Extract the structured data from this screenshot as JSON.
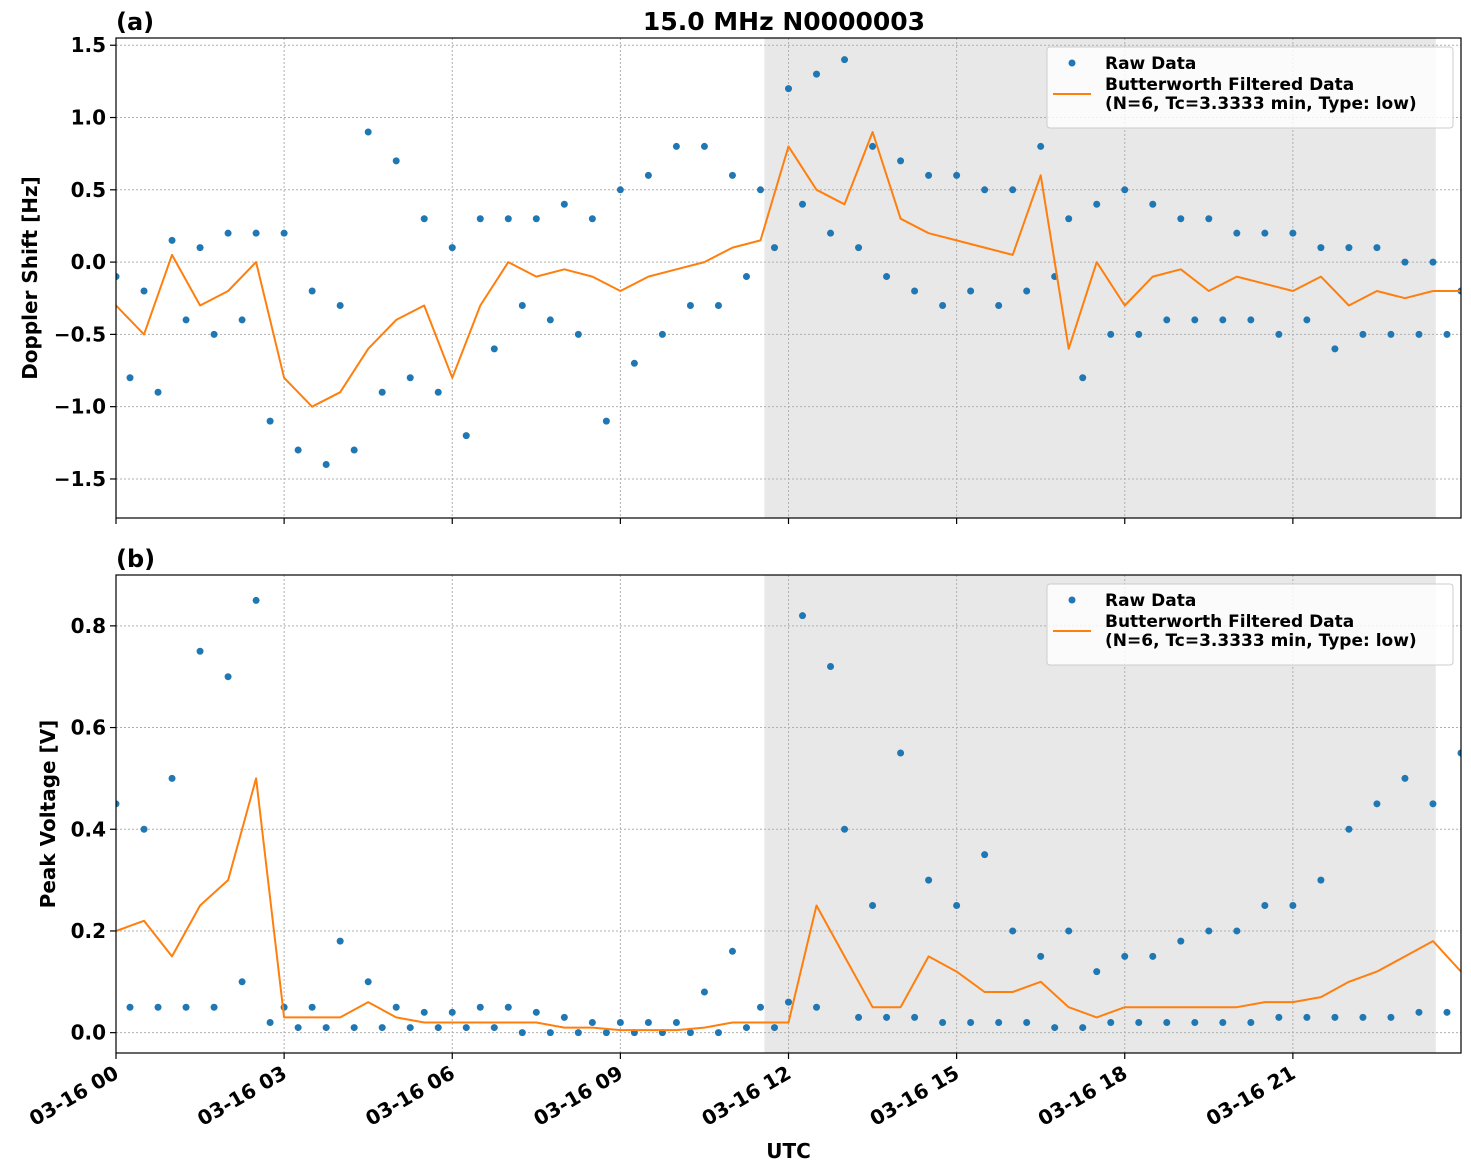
{
  "chart_data": [
    {
      "type": "line",
      "title": "15.0 MHz N0000003",
      "panel_label": "(a)",
      "ylabel": "Doppler Shift [Hz]",
      "xlim": [
        0,
        24
      ],
      "ylim": [
        -1.77,
        1.55
      ],
      "yticks": [
        {
          "value": -1.5,
          "label": "−1.5"
        },
        {
          "value": -1.0,
          "label": "−1.0"
        },
        {
          "value": -0.5,
          "label": "−0.5"
        },
        {
          "value": 0,
          "label": "0.0"
        },
        0.5,
        {
          "value": 1,
          "label": "1.0"
        },
        1.5
      ],
      "grid": true,
      "shade": [
        11.57,
        23.55
      ],
      "shade_color": "#e8e8e8",
      "legend": "upper right",
      "series": [
        {
          "name": "Raw Data",
          "mode": "markers",
          "color": "#1f77b4",
          "x": [
            0,
            0.25,
            0.5,
            0.75,
            1,
            1.25,
            1.5,
            1.75,
            2,
            2.25,
            2.5,
            2.75,
            3,
            3.25,
            3.5,
            3.75,
            4,
            4.25,
            4.5,
            4.75,
            5,
            5.25,
            5.5,
            5.75,
            6,
            6.25,
            6.5,
            6.75,
            7,
            7.25,
            7.5,
            7.75,
            8,
            8.25,
            8.5,
            8.75,
            9,
            9.25,
            9.5,
            9.75,
            10,
            10.25,
            10.5,
            10.75,
            11,
            11.25,
            11.5,
            11.75,
            12,
            12.25,
            12.5,
            12.75,
            13,
            13.25,
            13.5,
            13.75,
            14,
            14.25,
            14.5,
            14.75,
            15,
            15.25,
            15.5,
            15.75,
            16,
            16.25,
            16.5,
            16.75,
            17,
            17.25,
            17.5,
            17.75,
            18,
            18.25,
            18.5,
            18.75,
            19,
            19.25,
            19.5,
            19.75,
            20,
            20.25,
            20.5,
            20.75,
            21,
            21.25,
            21.5,
            21.75,
            22,
            22.25,
            22.5,
            22.75,
            23,
            23.25,
            23.5,
            23.75,
            24
          ],
          "values": [
            -0.1,
            -0.8,
            -0.2,
            -0.9,
            0.15,
            -0.4,
            0.1,
            -0.5,
            0.2,
            -0.4,
            0.2,
            -1.1,
            0.2,
            -1.3,
            -0.2,
            -1.4,
            -0.3,
            -1.3,
            0.9,
            -0.9,
            0.7,
            -0.8,
            0.3,
            -0.9,
            0.1,
            -1.2,
            0.3,
            -0.6,
            0.3,
            -0.3,
            0.3,
            -0.4,
            0.4,
            -0.5,
            0.3,
            -1.1,
            0.5,
            -0.7,
            0.6,
            -0.5,
            0.8,
            -0.3,
            0.8,
            -0.3,
            0.6,
            -0.1,
            0.5,
            0.1,
            1.2,
            0.4,
            1.3,
            0.2,
            1.4,
            0.1,
            0.8,
            -0.1,
            0.7,
            -0.2,
            0.6,
            -0.3,
            0.6,
            -0.2,
            0.5,
            -0.3,
            0.5,
            -0.2,
            0.8,
            -0.1,
            0.3,
            -0.8,
            0.4,
            -0.5,
            0.5,
            -0.5,
            0.4,
            -0.4,
            0.3,
            -0.4,
            0.3,
            -0.4,
            0.2,
            -0.4,
            0.2,
            -0.5,
            0.2,
            -0.4,
            0.1,
            -0.6,
            0.1,
            -0.5,
            0.1,
            -0.5,
            0.0,
            -0.5,
            0.0,
            -0.5,
            -0.2
          ]
        },
        {
          "name": "Butterworth Filtered Data\n(N=6, Tc=3.3333 min, Type: low)",
          "mode": "line",
          "color": "#ff7f0e",
          "x": [
            0,
            0.5,
            1,
            1.5,
            2,
            2.5,
            3,
            3.5,
            4,
            4.5,
            5,
            5.5,
            6,
            6.5,
            7,
            7.5,
            8,
            8.5,
            9,
            9.5,
            10,
            10.5,
            11,
            11.5,
            12,
            12.5,
            13,
            13.5,
            14,
            14.5,
            15,
            15.5,
            16,
            16.5,
            17,
            17.5,
            18,
            18.5,
            19,
            19.5,
            20,
            20.5,
            21,
            21.5,
            22,
            22.5,
            23,
            23.5,
            24
          ],
          "values": [
            -0.3,
            -0.5,
            0.05,
            -0.3,
            -0.2,
            0.0,
            -0.8,
            -1.0,
            -0.9,
            -0.6,
            -0.4,
            -0.3,
            -0.8,
            -0.3,
            0.0,
            -0.1,
            -0.05,
            -0.1,
            -0.2,
            -0.1,
            -0.05,
            0.0,
            0.1,
            0.15,
            0.8,
            0.5,
            0.4,
            0.9,
            0.3,
            0.2,
            0.15,
            0.1,
            0.05,
            0.6,
            -0.6,
            0.0,
            -0.3,
            -0.1,
            -0.05,
            -0.2,
            -0.1,
            -0.15,
            -0.2,
            -0.1,
            -0.3,
            -0.2,
            -0.25,
            -0.2,
            -0.2
          ]
        }
      ]
    },
    {
      "type": "line",
      "panel_label": "(b)",
      "ylabel": "Peak Voltage [V]",
      "xlabel": "UTC",
      "xlim": [
        0,
        24
      ],
      "ylim": [
        -0.04,
        0.9
      ],
      "xticks": [
        {
          "value": 0,
          "label": "03-16 00"
        },
        {
          "value": 3,
          "label": "03-16 03"
        },
        {
          "value": 6,
          "label": "03-16 06"
        },
        {
          "value": 9,
          "label": "03-16 09"
        },
        {
          "value": 12,
          "label": "03-16 12"
        },
        {
          "value": 15,
          "label": "03-16 15"
        },
        {
          "value": 18,
          "label": "03-16 18"
        },
        {
          "value": 21,
          "label": "03-16 21"
        }
      ],
      "yticks": [
        {
          "value": 0,
          "label": "0.0"
        },
        0.2,
        0.4,
        0.6,
        0.8
      ],
      "grid": true,
      "shade": [
        11.57,
        23.55
      ],
      "shade_color": "#e8e8e8",
      "legend": "upper right",
      "series": [
        {
          "name": "Raw Data",
          "mode": "markers",
          "color": "#1f77b4",
          "x": [
            0,
            0.25,
            0.5,
            0.75,
            1,
            1.25,
            1.5,
            1.75,
            2,
            2.25,
            2.5,
            2.75,
            3,
            3.25,
            3.5,
            3.75,
            4,
            4.25,
            4.5,
            4.75,
            5,
            5.25,
            5.5,
            5.75,
            6,
            6.25,
            6.5,
            6.75,
            7,
            7.25,
            7.5,
            7.75,
            8,
            8.25,
            8.5,
            8.75,
            9,
            9.25,
            9.5,
            9.75,
            10,
            10.25,
            10.5,
            10.75,
            11,
            11.25,
            11.5,
            11.75,
            12,
            12.25,
            12.5,
            12.75,
            13,
            13.25,
            13.5,
            13.75,
            14,
            14.25,
            14.5,
            14.75,
            15,
            15.25,
            15.5,
            15.75,
            16,
            16.25,
            16.5,
            16.75,
            17,
            17.25,
            17.5,
            17.75,
            18,
            18.25,
            18.5,
            18.75,
            19,
            19.25,
            19.5,
            19.75,
            20,
            20.25,
            20.5,
            20.75,
            21,
            21.25,
            21.5,
            21.75,
            22,
            22.25,
            22.5,
            22.75,
            23,
            23.25,
            23.5,
            23.75,
            24
          ],
          "values": [
            0.45,
            0.05,
            0.4,
            0.05,
            0.5,
            0.05,
            0.75,
            0.05,
            0.7,
            0.1,
            0.85,
            0.02,
            0.05,
            0.01,
            0.05,
            0.01,
            0.18,
            0.01,
            0.1,
            0.01,
            0.05,
            0.01,
            0.04,
            0.01,
            0.04,
            0.01,
            0.05,
            0.01,
            0.05,
            0.0,
            0.04,
            0.0,
            0.03,
            0.0,
            0.02,
            0.0,
            0.02,
            0.0,
            0.02,
            0.0,
            0.02,
            0.0,
            0.08,
            0.0,
            0.16,
            0.01,
            0.05,
            0.01,
            0.06,
            0.82,
            0.05,
            0.72,
            0.4,
            0.03,
            0.25,
            0.03,
            0.55,
            0.03,
            0.3,
            0.02,
            0.25,
            0.02,
            0.35,
            0.02,
            0.2,
            0.02,
            0.15,
            0.01,
            0.2,
            0.01,
            0.12,
            0.02,
            0.15,
            0.02,
            0.15,
            0.02,
            0.18,
            0.02,
            0.2,
            0.02,
            0.2,
            0.02,
            0.25,
            0.03,
            0.25,
            0.03,
            0.3,
            0.03,
            0.4,
            0.03,
            0.45,
            0.03,
            0.5,
            0.04,
            0.45,
            0.04,
            0.55
          ]
        },
        {
          "name": "Butterworth Filtered Data\n(N=6, Tc=3.3333 min, Type: low)",
          "mode": "line",
          "color": "#ff7f0e",
          "x": [
            0,
            0.5,
            1,
            1.5,
            2,
            2.5,
            3,
            3.5,
            4,
            4.5,
            5,
            5.5,
            6,
            6.5,
            7,
            7.5,
            8,
            8.5,
            9,
            9.5,
            10,
            10.5,
            11,
            11.5,
            12,
            12.5,
            13,
            13.5,
            14,
            14.5,
            15,
            15.5,
            16,
            16.5,
            17,
            17.5,
            18,
            18.5,
            19,
            19.5,
            20,
            20.5,
            21,
            21.5,
            22,
            22.5,
            23,
            23.5,
            24
          ],
          "values": [
            0.2,
            0.22,
            0.15,
            0.25,
            0.3,
            0.5,
            0.03,
            0.03,
            0.03,
            0.06,
            0.03,
            0.02,
            0.02,
            0.02,
            0.02,
            0.02,
            0.01,
            0.01,
            0.005,
            0.005,
            0.005,
            0.01,
            0.02,
            0.02,
            0.02,
            0.25,
            0.15,
            0.05,
            0.05,
            0.15,
            0.12,
            0.08,
            0.08,
            0.1,
            0.05,
            0.03,
            0.05,
            0.05,
            0.05,
            0.05,
            0.05,
            0.06,
            0.06,
            0.07,
            0.1,
            0.12,
            0.15,
            0.18,
            0.12
          ]
        }
      ]
    }
  ]
}
